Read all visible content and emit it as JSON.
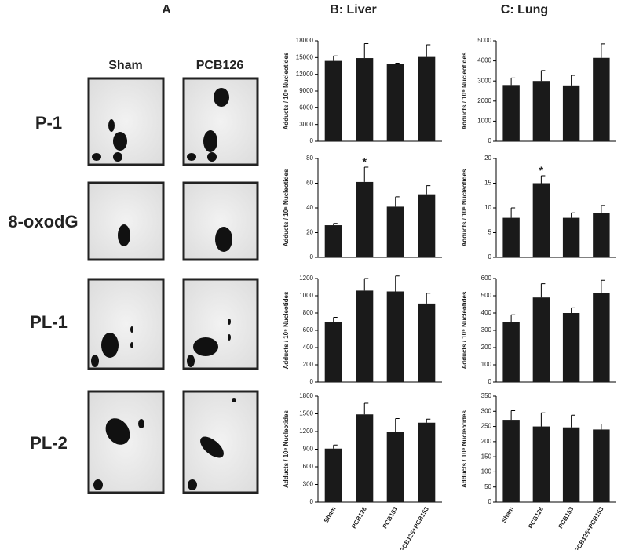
{
  "panel_a": {
    "label": "A",
    "columns": [
      "Sham",
      "PCB126"
    ],
    "rows": [
      "P-1",
      "8-oxodG",
      "PL-1",
      "PL-2"
    ]
  },
  "panel_b_title": "B: Liver",
  "panel_c_title": "C: Lung",
  "chart_data": [
    {
      "type": "bar",
      "ylabel": "Adducts / 10⁹ Nucleotides",
      "categories": [
        null,
        null,
        null,
        null
      ],
      "values": [
        14400,
        14900,
        13900,
        15100
      ],
      "errors": [
        900,
        2600,
        100,
        2200
      ],
      "color": "#1a1a1a",
      "ylim": [
        0,
        18000
      ],
      "yticks": [
        0,
        3000,
        6000,
        9000,
        12000,
        15000,
        18000
      ]
    },
    {
      "type": "bar",
      "ylabel": "Adducts / 10⁶ Nucleotides",
      "categories": [
        null,
        null,
        null,
        null
      ],
      "values": [
        26,
        61,
        41,
        51
      ],
      "errors": [
        1.5,
        12,
        8,
        7
      ],
      "color": "#1a1a1a",
      "ylim": [
        0,
        80
      ],
      "yticks": [
        0,
        20,
        40,
        60,
        80
      ],
      "annotation": "*"
    },
    {
      "type": "bar",
      "ylabel": "Adducts / 10⁹ Nucleotides",
      "categories": [
        null,
        null,
        null,
        null
      ],
      "values": [
        700,
        1060,
        1050,
        910
      ],
      "errors": [
        50,
        140,
        180,
        120
      ],
      "color": "#1a1a1a",
      "ylim": [
        0,
        1200
      ],
      "yticks": [
        0,
        200,
        400,
        600,
        800,
        1000,
        1200
      ]
    },
    {
      "type": "bar",
      "ylabel": "Adducts / 10⁹ Nucleotides",
      "categories": [
        "Sham",
        "PCB126",
        "PCB153",
        "PCB126+PCB153"
      ],
      "values": [
        910,
        1490,
        1200,
        1350
      ],
      "errors": [
        60,
        190,
        220,
        60
      ],
      "color": "#1a1a1a",
      "ylim": [
        0,
        1800
      ],
      "yticks": [
        0,
        300,
        600,
        900,
        1200,
        1500,
        1800
      ]
    },
    {
      "type": "bar",
      "ylabel": "Adducts / 10⁹ Nucleotides",
      "categories": [
        null,
        null,
        null,
        null
      ],
      "values": [
        2800,
        3000,
        2780,
        4150
      ],
      "errors": [
        350,
        520,
        500,
        700
      ],
      "color": "#1a1a1a",
      "ylim": [
        0,
        5000
      ],
      "yticks": [
        0,
        1000,
        2000,
        3000,
        4000,
        5000
      ]
    },
    {
      "type": "bar",
      "ylabel": "Adducts / 10⁶ Nucleotides",
      "categories": [
        null,
        null,
        null,
        null
      ],
      "values": [
        8,
        15,
        8,
        9
      ],
      "errors": [
        2,
        1.5,
        1,
        1.5
      ],
      "color": "#1a1a1a",
      "ylim": [
        0,
        20
      ],
      "yticks": [
        0,
        5,
        10,
        15,
        20
      ],
      "annotation": "*"
    },
    {
      "type": "bar",
      "ylabel": "Adducts / 10⁹ Nucleotides",
      "categories": [
        null,
        null,
        null,
        null
      ],
      "values": [
        350,
        490,
        400,
        515
      ],
      "errors": [
        40,
        80,
        30,
        75
      ],
      "color": "#1a1a1a",
      "ylim": [
        0,
        600
      ],
      "yticks": [
        0,
        100,
        200,
        300,
        400,
        500,
        600
      ]
    },
    {
      "type": "bar",
      "ylabel": "Adducts / 10⁹ Nucleotides",
      "categories": [
        "Sham",
        "PCB126",
        "PCB153",
        "PCB126+PCB153"
      ],
      "values": [
        272,
        250,
        247,
        240
      ],
      "errors": [
        30,
        45,
        40,
        18
      ],
      "color": "#1a1a1a",
      "ylim": [
        0,
        350
      ],
      "yticks": [
        0,
        50,
        100,
        150,
        200,
        250,
        300,
        350
      ]
    }
  ]
}
